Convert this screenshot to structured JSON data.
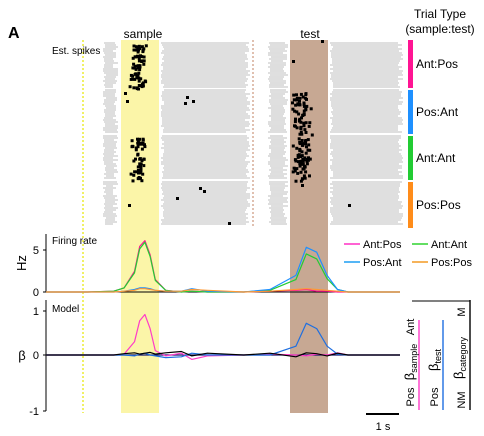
{
  "panel_letter": "A",
  "header": {
    "sample_label": "sample",
    "test_label": "test",
    "trial_type_title_1": "Trial Type",
    "trial_type_title_2": "(sample:test)"
  },
  "raster": {
    "label": "Est. spikes"
  },
  "trial_types": [
    {
      "label": "Ant:Pos",
      "color": "#ff1493"
    },
    {
      "label": "Pos:Ant",
      "color": "#1e90ff"
    },
    {
      "label": "Ant:Ant",
      "color": "#22cc33"
    },
    {
      "label": "Pos:Pos",
      "color": "#ff8c1a"
    }
  ],
  "colors": {
    "sample_window": "#fbf5a8",
    "test_window": "#c7a893",
    "trial_bar": "#cccccc",
    "spike": "#000000",
    "fixation_line": "#e6e600",
    "delay_line": "#c08060"
  },
  "chart_data": [
    {
      "type": "line",
      "title": "Firing rate",
      "ylabel": "Hz",
      "ylim": [
        0,
        7
      ],
      "yticks": [
        "0",
        "5"
      ],
      "x_unit": "s",
      "x": [
        -1.8,
        -1.0,
        -0.5,
        -0.3,
        -0.1,
        0.0,
        0.1,
        0.2,
        0.3,
        0.5,
        0.8,
        1.0,
        1.3,
        2.0,
        2.5,
        3.0,
        3.2,
        3.4,
        3.6,
        3.8,
        4.0,
        4.4,
        5.0
      ],
      "series": [
        {
          "name": "Ant:Pos",
          "color": "#ff1493",
          "values": [
            0,
            0,
            0.1,
            0.5,
            2.5,
            5.5,
            6.2,
            4.5,
            1.5,
            0.2,
            0,
            0.1,
            0,
            0,
            0.1,
            0.2,
            0.3,
            0.1,
            0.1,
            0,
            0,
            0,
            0
          ]
        },
        {
          "name": "Ant:Ant",
          "color": "#22cc33",
          "values": [
            0,
            0,
            0.1,
            0.5,
            2.3,
            5.2,
            6.0,
            4.3,
            1.4,
            0.2,
            0,
            0.1,
            0,
            0,
            0.2,
            1.5,
            4.6,
            4.0,
            1.6,
            0.3,
            0,
            0,
            0
          ]
        },
        {
          "name": "Pos:Ant",
          "color": "#1e90ff",
          "values": [
            0,
            0,
            0,
            0.1,
            0.3,
            0.5,
            0.5,
            0.4,
            0.2,
            0.1,
            0.1,
            0.4,
            0.1,
            0,
            0.3,
            2.0,
            5.4,
            4.8,
            2.0,
            0.3,
            0,
            0,
            0
          ]
        },
        {
          "name": "Pos:Pos",
          "color": "#ff9933",
          "values": [
            0,
            0,
            0,
            0.1,
            0.2,
            0.4,
            0.4,
            0.3,
            0.2,
            0.1,
            0.1,
            0.3,
            0.2,
            0,
            0.1,
            0.3,
            0.4,
            0.3,
            0.2,
            0.1,
            0,
            0,
            0
          ]
        }
      ]
    },
    {
      "type": "line",
      "title": "Model",
      "ylabel": "β",
      "ylim": [
        -1,
        1.35
      ],
      "yticks": [
        "1",
        "0",
        "-1"
      ],
      "x_unit": "s",
      "x": [
        -1.8,
        -1.0,
        -0.5,
        -0.3,
        -0.1,
        0.0,
        0.1,
        0.2,
        0.3,
        0.5,
        0.8,
        1.0,
        1.3,
        2.0,
        2.5,
        3.0,
        3.2,
        3.4,
        3.6,
        3.8,
        4.0,
        4.4,
        5.0
      ],
      "series": [
        {
          "name": "β_sample",
          "color": "#ff3cc8",
          "values": [
            0,
            0,
            0,
            0.02,
            0.3,
            0.78,
            0.92,
            0.6,
            0.1,
            -0.02,
            0.04,
            -0.1,
            -0.02,
            0,
            0.02,
            0,
            -0.02,
            0.02,
            0,
            0.05,
            0,
            0,
            0
          ]
        },
        {
          "name": "β_test",
          "color": "#1f6fe0",
          "values": [
            0,
            0,
            0,
            0,
            -0.02,
            0.02,
            0.04,
            0,
            -0.02,
            -0.06,
            -0.04,
            0.04,
            0,
            0,
            0,
            0.2,
            0.72,
            0.6,
            0.2,
            0.02,
            0,
            0,
            0
          ]
        },
        {
          "name": "β_category",
          "color": "#000000",
          "values": [
            0,
            0,
            0,
            0.03,
            0.05,
            0.02,
            0.04,
            0.06,
            0.02,
            0.05,
            0.08,
            -0.02,
            0.04,
            0,
            0.04,
            -0.04,
            0.05,
            0.03,
            -0.02,
            0.04,
            0,
            0,
            0
          ]
        }
      ]
    }
  ],
  "legend": [
    {
      "name": "Ant:Pos",
      "color": "#ff3cc8"
    },
    {
      "name": "Ant:Ant",
      "color": "#3cd63c"
    },
    {
      "name": "Pos:Ant",
      "color": "#2aa4f4"
    },
    {
      "name": "Pos:Pos",
      "color": "#f4a030"
    }
  ],
  "model_legend": [
    {
      "beta": "β",
      "sub": "sample",
      "top": "Ant",
      "bottom": "Pos",
      "color": "#ff3cc8"
    },
    {
      "beta": "β",
      "sub": "test",
      "top": "",
      "bottom": "Pos",
      "color": "#1f6fe0"
    },
    {
      "beta": "β",
      "sub": "category",
      "top": "M",
      "bottom": "NM",
      "color": "#000000"
    }
  ],
  "scale_bar": {
    "label": "1 s"
  }
}
